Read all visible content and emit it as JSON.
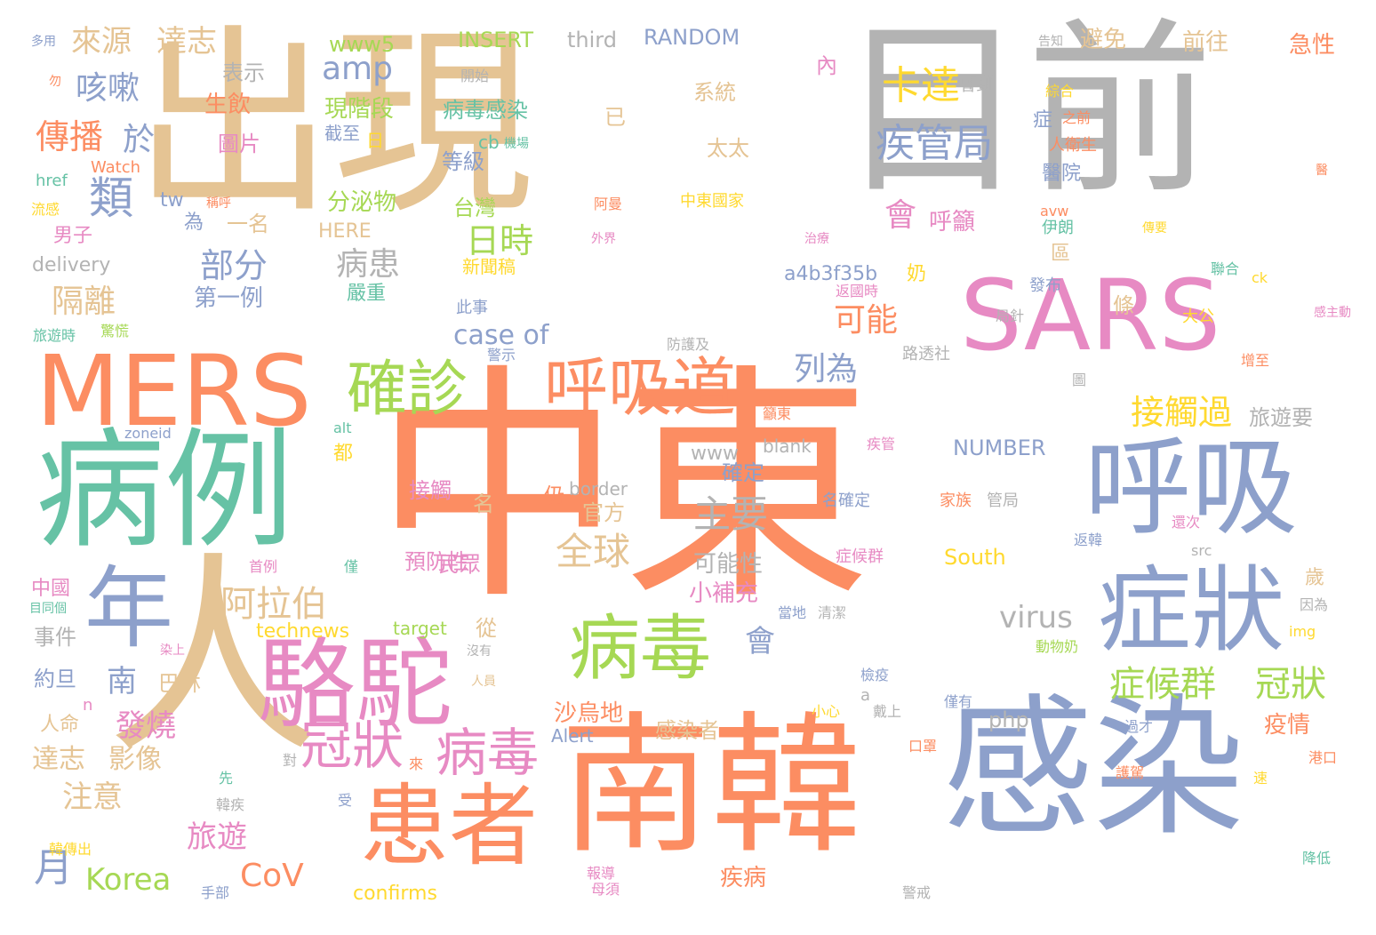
{
  "palette": {
    "tan": "#E5C494",
    "orange": "#FC8D62",
    "blue": "#8DA0CB",
    "green": "#66C2A5",
    "pink": "#E78AC3",
    "lime": "#A6D854",
    "yellow": "#FFD92F",
    "gray": "#B3B3B3"
  },
  "words": [
    {
      "text": "中東",
      "color": "orange"
    },
    {
      "text": "出現",
      "color": "tan"
    },
    {
      "text": "目前",
      "color": "gray"
    },
    {
      "text": "南韓",
      "color": "orange"
    },
    {
      "text": "感染",
      "color": "blue"
    },
    {
      "text": "人",
      "color": "tan"
    },
    {
      "text": "SARS",
      "color": "pink"
    },
    {
      "text": "MERS",
      "color": "orange"
    },
    {
      "text": "病例",
      "color": "green"
    },
    {
      "text": "呼吸",
      "color": "blue"
    },
    {
      "text": "駱駝",
      "color": "pink"
    },
    {
      "text": "患者",
      "color": "orange"
    },
    {
      "text": "症狀",
      "color": "blue"
    },
    {
      "text": "年",
      "color": "blue"
    },
    {
      "text": "病毒",
      "color": "lime"
    },
    {
      "text": "呼吸道",
      "color": "orange"
    },
    {
      "text": "確診",
      "color": "lime"
    },
    {
      "text": "病毒",
      "color": "pink"
    },
    {
      "text": "冠狀",
      "color": "pink"
    },
    {
      "text": "症候群",
      "color": "lime"
    },
    {
      "text": "冠狀",
      "color": "lime"
    },
    {
      "text": "接觸過",
      "color": "yellow"
    },
    {
      "text": "疾管局",
      "color": "blue"
    },
    {
      "text": "卡達",
      "color": "yellow"
    },
    {
      "text": "全球",
      "color": "tan"
    },
    {
      "text": "主要",
      "color": "gray"
    },
    {
      "text": "阿拉伯",
      "color": "tan"
    },
    {
      "text": "傳播",
      "color": "orange"
    },
    {
      "text": "咳嗽",
      "color": "blue"
    },
    {
      "text": "來源",
      "color": "tan"
    },
    {
      "text": "達志",
      "color": "tan"
    },
    {
      "text": "類",
      "color": "blue"
    },
    {
      "text": "於",
      "color": "blue"
    },
    {
      "text": "日時",
      "color": "lime"
    },
    {
      "text": "部分",
      "color": "blue"
    },
    {
      "text": "病患",
      "color": "gray"
    },
    {
      "text": "隔離",
      "color": "tan"
    },
    {
      "text": "可能",
      "color": "orange"
    },
    {
      "text": "列為",
      "color": "blue"
    },
    {
      "text": "amp",
      "color": "blue"
    },
    {
      "text": "會",
      "color": "pink"
    },
    {
      "text": "會",
      "color": "blue"
    },
    {
      "text": "月",
      "color": "blue"
    },
    {
      "text": "Korea",
      "color": "lime"
    },
    {
      "text": "CoV",
      "color": "orange"
    },
    {
      "text": "旅遊",
      "color": "pink"
    },
    {
      "text": "注意",
      "color": "tan"
    },
    {
      "text": "發燒",
      "color": "pink"
    },
    {
      "text": "南",
      "color": "blue"
    },
    {
      "text": "達志",
      "color": "tan"
    },
    {
      "text": "影像",
      "color": "tan"
    },
    {
      "text": "virus",
      "color": "gray"
    },
    {
      "text": "case of",
      "color": "blue"
    },
    {
      "text": "疾病",
      "color": "orange"
    },
    {
      "text": "沙烏地",
      "color": "orange"
    },
    {
      "text": "可能性",
      "color": "gray"
    },
    {
      "text": "小補充",
      "color": "pink"
    },
    {
      "text": "確定",
      "color": "blue"
    },
    {
      "text": "官方",
      "color": "tan"
    },
    {
      "text": "預防性",
      "color": "pink"
    },
    {
      "text": "民眾",
      "color": "pink"
    },
    {
      "text": "接觸",
      "color": "pink"
    },
    {
      "text": "疫情",
      "color": "orange"
    },
    {
      "text": "旅遊要",
      "color": "gray"
    },
    {
      "text": "前往",
      "color": "tan"
    },
    {
      "text": "急性",
      "color": "orange"
    },
    {
      "text": "避免",
      "color": "tan"
    },
    {
      "text": "INSERT",
      "color": "lime"
    },
    {
      "text": "third",
      "color": "gray"
    },
    {
      "text": "RANDOM",
      "color": "blue"
    },
    {
      "text": "www5",
      "color": "lime"
    },
    {
      "text": "表示",
      "color": "gray"
    },
    {
      "text": "生飲",
      "color": "orange"
    },
    {
      "text": "圖片",
      "color": "pink"
    },
    {
      "text": "現階段",
      "color": "lime"
    },
    {
      "text": "截至",
      "color": "blue"
    },
    {
      "text": "日",
      "color": "yellow"
    },
    {
      "text": "病毒感染",
      "color": "green"
    },
    {
      "text": "cb",
      "color": "green"
    },
    {
      "text": "機場",
      "color": "green"
    },
    {
      "text": "等級",
      "color": "blue"
    },
    {
      "text": "台灣",
      "color": "lime"
    },
    {
      "text": "分泌物",
      "color": "lime"
    },
    {
      "text": "系統",
      "color": "tan"
    },
    {
      "text": "太太",
      "color": "tan"
    },
    {
      "text": "中東國家",
      "color": "yellow"
    },
    {
      "text": "呼籲",
      "color": "pink"
    },
    {
      "text": "嚴重",
      "color": "green"
    },
    {
      "text": "第一例",
      "color": "blue"
    },
    {
      "text": "一名",
      "color": "tan"
    },
    {
      "text": "男子",
      "color": "pink"
    },
    {
      "text": "delivery",
      "color": "gray"
    },
    {
      "text": "HERE",
      "color": "tan"
    },
    {
      "text": "新聞稿",
      "color": "yellow"
    },
    {
      "text": "a4b3f35b",
      "color": "blue"
    },
    {
      "text": "奶",
      "color": "yellow"
    },
    {
      "text": "www",
      "color": "gray"
    },
    {
      "text": "blank",
      "color": "gray"
    },
    {
      "text": "NUMBER",
      "color": "blue"
    },
    {
      "text": "border",
      "color": "gray"
    },
    {
      "text": "名確定",
      "color": "blue"
    },
    {
      "text": "家族",
      "color": "orange"
    },
    {
      "text": "管局",
      "color": "gray"
    },
    {
      "text": "症候群",
      "color": "pink"
    },
    {
      "text": "South",
      "color": "yellow"
    },
    {
      "text": "php",
      "color": "gray"
    },
    {
      "text": "Alert",
      "color": "blue"
    },
    {
      "text": "感染者",
      "color": "tan"
    },
    {
      "text": "technews",
      "color": "yellow"
    },
    {
      "text": "target",
      "color": "lime"
    },
    {
      "text": "confirms",
      "color": "yellow"
    },
    {
      "text": "巴林",
      "color": "tan"
    },
    {
      "text": "事件",
      "color": "gray"
    },
    {
      "text": "約旦",
      "color": "blue"
    },
    {
      "text": "人命",
      "color": "tan"
    },
    {
      "text": "中國",
      "color": "pink"
    },
    {
      "text": "Watch",
      "color": "orange"
    },
    {
      "text": "href",
      "color": "green"
    },
    {
      "text": "流感",
      "color": "yellow"
    },
    {
      "text": "旅遊時",
      "color": "green"
    },
    {
      "text": "zoneid",
      "color": "blue"
    },
    {
      "text": "alt",
      "color": "green"
    },
    {
      "text": "為",
      "color": "blue"
    },
    {
      "text": "tw",
      "color": "blue"
    },
    {
      "text": "卡達",
      "color": "gray"
    },
    {
      "text": "曾到",
      "color": "gray"
    },
    {
      "text": "綜合",
      "color": "yellow"
    },
    {
      "text": "之前",
      "color": "orange"
    },
    {
      "text": "人衛生",
      "color": "orange"
    },
    {
      "text": "醫院",
      "color": "blue"
    },
    {
      "text": "伊朗",
      "color": "green"
    },
    {
      "text": "聯合",
      "color": "green"
    },
    {
      "text": "發布",
      "color": "blue"
    },
    {
      "text": "大公",
      "color": "yellow"
    },
    {
      "text": "路透社",
      "color": "gray"
    },
    {
      "text": "局針",
      "color": "gray"
    },
    {
      "text": "此事",
      "color": "blue"
    },
    {
      "text": "防護及",
      "color": "gray"
    },
    {
      "text": "警示",
      "color": "blue"
    },
    {
      "text": "返國時",
      "color": "pink"
    },
    {
      "text": "首例",
      "color": "pink"
    },
    {
      "text": "手部",
      "color": "blue"
    },
    {
      "text": "報導",
      "color": "pink"
    },
    {
      "text": "警戒",
      "color": "gray"
    },
    {
      "text": "口罩",
      "color": "orange"
    },
    {
      "text": "過才",
      "color": "blue"
    },
    {
      "text": "動物奶",
      "color": "lime"
    },
    {
      "text": "檢疫",
      "color": "blue"
    },
    {
      "text": "小心",
      "color": "yellow"
    },
    {
      "text": "僅有",
      "color": "blue"
    },
    {
      "text": "返韓",
      "color": "blue"
    },
    {
      "text": "護駕",
      "color": "orange"
    },
    {
      "text": "港口",
      "color": "orange"
    },
    {
      "text": "降低",
      "color": "green"
    },
    {
      "text": "src",
      "color": "gray"
    },
    {
      "text": "因為",
      "color": "gray"
    },
    {
      "text": "img",
      "color": "yellow"
    },
    {
      "text": "歲",
      "color": "tan"
    },
    {
      "text": "多用",
      "color": "blue"
    },
    {
      "text": "勿",
      "color": "orange"
    },
    {
      "text": "開始",
      "color": "gray"
    },
    {
      "text": "告知",
      "color": "gray"
    },
    {
      "text": "醫",
      "color": "orange"
    },
    {
      "text": "感主動",
      "color": "pink"
    },
    {
      "text": "增至",
      "color": "orange"
    },
    {
      "text": "ck",
      "color": "yellow"
    },
    {
      "text": "韓傳出",
      "color": "yellow"
    },
    {
      "text": "韓疾",
      "color": "gray"
    },
    {
      "text": "先",
      "color": "green"
    },
    {
      "text": "受",
      "color": "blue"
    },
    {
      "text": "對",
      "color": "gray"
    },
    {
      "text": "戴上",
      "color": "gray"
    },
    {
      "text": "稱呼",
      "color": "orange"
    },
    {
      "text": "阿曼",
      "color": "orange"
    },
    {
      "text": "外界",
      "color": "pink"
    },
    {
      "text": "治療",
      "color": "pink"
    },
    {
      "text": "傳要",
      "color": "yellow"
    },
    {
      "text": "avw",
      "color": "orange"
    },
    {
      "text": "內",
      "color": "pink"
    },
    {
      "text": "已",
      "color": "tan"
    },
    {
      "text": "症",
      "color": "blue"
    },
    {
      "text": "區",
      "color": "tan"
    },
    {
      "text": "條",
      "color": "tan"
    },
    {
      "text": "仍",
      "color": "orange"
    },
    {
      "text": "名",
      "color": "tan"
    },
    {
      "text": "從",
      "color": "tan"
    },
    {
      "text": "都",
      "color": "yellow"
    },
    {
      "text": "n",
      "color": "pink"
    },
    {
      "text": "a",
      "color": "gray"
    },
    {
      "text": "僅",
      "color": "green"
    },
    {
      "text": "目同個",
      "color": "green"
    },
    {
      "text": "驚慌",
      "color": "lime"
    },
    {
      "text": "當地",
      "color": "blue"
    },
    {
      "text": "清潔",
      "color": "gray"
    },
    {
      "text": "疾管",
      "color": "pink"
    },
    {
      "text": "籲東",
      "color": "orange"
    },
    {
      "text": "還次",
      "color": "pink"
    },
    {
      "text": "來",
      "color": "orange"
    },
    {
      "text": "速",
      "color": "yellow"
    },
    {
      "text": "母須",
      "color": "pink"
    },
    {
      "text": "沒有",
      "color": "gray"
    },
    {
      "text": "人員",
      "color": "tan"
    },
    {
      "text": "染上",
      "color": "pink"
    },
    {
      "text": "圖",
      "color": "gray"
    }
  ]
}
